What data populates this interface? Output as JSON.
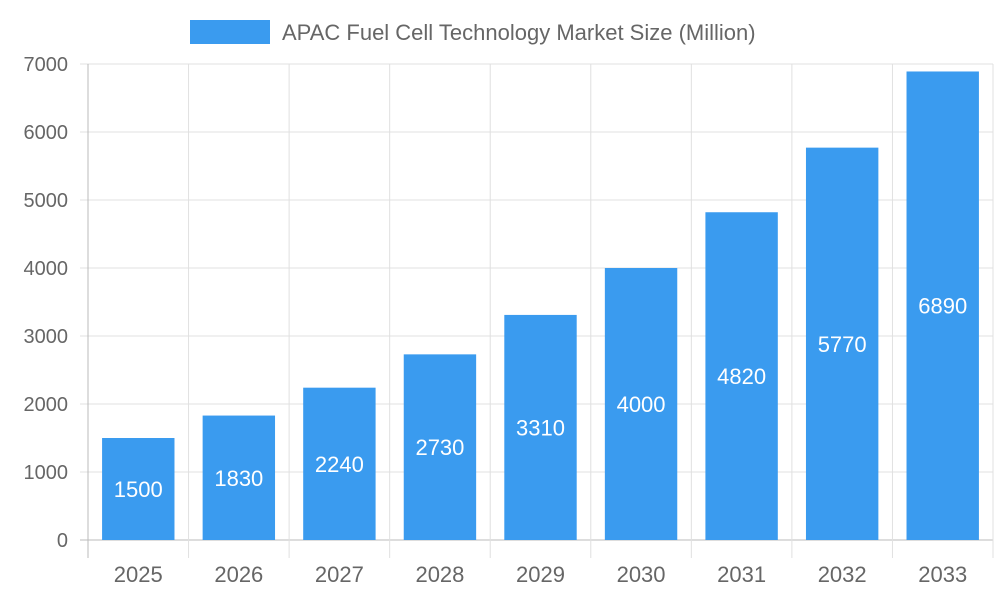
{
  "chart_data": {
    "type": "bar",
    "title": "",
    "xlabel": "",
    "ylabel": "",
    "categories": [
      "2025",
      "2026",
      "2027",
      "2028",
      "2029",
      "2030",
      "2031",
      "2032",
      "2033"
    ],
    "series": [
      {
        "name": "APAC Fuel Cell Technology Market Size (Million)",
        "values": [
          1500,
          1830,
          2240,
          2730,
          3310,
          4000,
          4820,
          5770,
          6890
        ],
        "color": "#3a9bef"
      }
    ],
    "ylim": [
      0,
      7000
    ],
    "yticks": [
      "0",
      "1000",
      "2000",
      "3000",
      "4000",
      "5000",
      "6000",
      "7000"
    ],
    "grid": true,
    "legend": "top",
    "data_labels": true
  }
}
